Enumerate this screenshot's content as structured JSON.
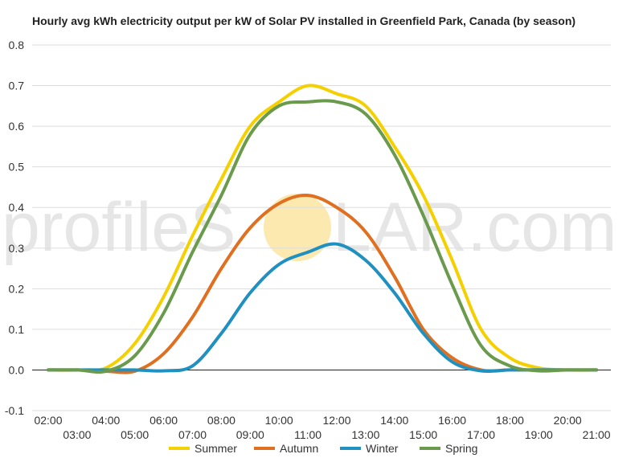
{
  "chart_data": {
    "type": "line",
    "title": "Hourly avg kWh electricity output per kW of Solar PV installed in Greenfield Park, Canada (by season)",
    "xlabel": "",
    "ylabel": "",
    "ylim": [
      -0.1,
      0.8
    ],
    "yticks": [
      "-0.1",
      "0.0",
      "0.1",
      "0.2",
      "0.3",
      "0.4",
      "0.5",
      "0.6",
      "0.7",
      "0.8"
    ],
    "x_upper_ticks": [
      "02:00",
      "04:00",
      "06:00",
      "08:00",
      "10:00",
      "12:00",
      "14:00",
      "16:00",
      "18:00",
      "20:00"
    ],
    "x_lower_ticks": [
      "03:00",
      "05:00",
      "07:00",
      "09:00",
      "11:00",
      "13:00",
      "15:00",
      "17:00",
      "19:00",
      "21:00"
    ],
    "x": [
      "02:00",
      "03:00",
      "04:00",
      "05:00",
      "06:00",
      "07:00",
      "08:00",
      "09:00",
      "10:00",
      "11:00",
      "12:00",
      "13:00",
      "14:00",
      "15:00",
      "16:00",
      "17:00",
      "18:00",
      "19:00",
      "20:00",
      "21:00"
    ],
    "grid": true,
    "legend_position": "bottom",
    "series": [
      {
        "name": "Summer",
        "color": "#f5d000",
        "values": [
          0.0,
          0.0,
          0.005,
          0.065,
          0.18,
          0.33,
          0.47,
          0.6,
          0.66,
          0.7,
          0.68,
          0.65,
          0.55,
          0.43,
          0.27,
          0.1,
          0.03,
          0.005,
          0.0,
          0.0
        ]
      },
      {
        "name": "Autumn",
        "color": "#e07020",
        "values": [
          0.0,
          0.0,
          -0.003,
          -0.003,
          0.04,
          0.13,
          0.25,
          0.35,
          0.41,
          0.43,
          0.4,
          0.34,
          0.23,
          0.1,
          0.03,
          0.0,
          0.0,
          0.0,
          0.0,
          0.0
        ]
      },
      {
        "name": "Winter",
        "color": "#2090c0",
        "values": [
          0.0,
          0.0,
          0.0,
          0.0,
          -0.002,
          0.01,
          0.09,
          0.19,
          0.26,
          0.29,
          0.31,
          0.27,
          0.19,
          0.09,
          0.02,
          -0.002,
          0.0,
          0.0,
          0.0,
          0.0
        ]
      },
      {
        "name": "Spring",
        "color": "#6a9a4c",
        "values": [
          0.0,
          0.0,
          -0.003,
          0.035,
          0.14,
          0.29,
          0.43,
          0.58,
          0.65,
          0.66,
          0.66,
          0.63,
          0.53,
          0.38,
          0.21,
          0.06,
          0.01,
          -0.002,
          0.0,
          0.0
        ]
      }
    ]
  },
  "watermark": {
    "text_left": "profileS",
    "text_right": "LAR.com",
    "sun_color": "#fbe9b0"
  }
}
